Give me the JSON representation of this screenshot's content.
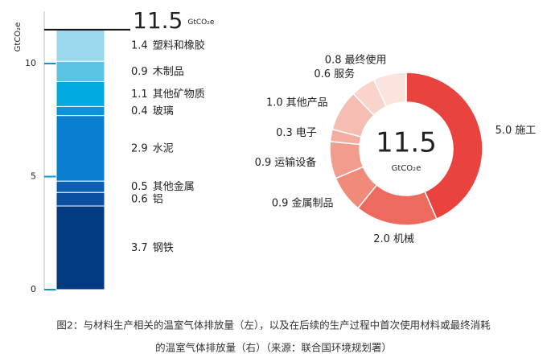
{
  "chart_data": [
    {
      "type": "stacked_bar",
      "y_label": "GtCO₂e",
      "ylim": [
        0,
        12.3
      ],
      "yticks": [
        0,
        5,
        10
      ],
      "total": 11.5,
      "total_unit": "GtCO₂e",
      "series": [
        {
          "name": "钢铁",
          "color": "#003a80",
          "values": [
            3.7
          ]
        },
        {
          "name": "铝",
          "color": "#0a4fa0",
          "values": [
            0.6
          ]
        },
        {
          "name": "其他金属",
          "color": "#0d5fb5",
          "values": [
            0.5
          ]
        },
        {
          "name": "水泥",
          "color": "#0a7fd0",
          "values": [
            2.9
          ]
        },
        {
          "name": "玻璃",
          "color": "#0a93d8",
          "values": [
            0.4
          ]
        },
        {
          "name": "其他矿物质",
          "color": "#00a9df",
          "values": [
            1.1
          ]
        },
        {
          "name": "木制品",
          "color": "#5bc4e6",
          "values": [
            0.9
          ]
        },
        {
          "name": "塑料和橡胶",
          "color": "#9ad6ec",
          "values": [
            1.4
          ]
        }
      ]
    },
    {
      "type": "donut",
      "total": 11.5,
      "total_unit": "GtCO₂e",
      "categories": [
        "施工",
        "机械",
        "金属制品",
        "运输设备",
        "电子",
        "其他产品",
        "服务",
        "最终使用"
      ],
      "values": [
        5.0,
        2.0,
        0.9,
        0.9,
        0.3,
        1.0,
        0.6,
        0.8
      ],
      "value_labels": [
        "5.0",
        "2.0",
        "0.9",
        "0.9",
        "0.3",
        "1.0",
        "0.6",
        "0.8"
      ],
      "colors": [
        "#e8433f",
        "#ed6b5e",
        "#f08a7b",
        "#f29c8e",
        "#f4ada1",
        "#f6bdb3",
        "#f9d3cc",
        "#fbe3de"
      ]
    }
  ],
  "caption": [
    "图2：与材料生产相关的温室气体排放量（左），以及在后续的生产过程中首次使用材料或最终消耗",
    "的温室气体排放量（右）（来源：联合国环境规划署）"
  ]
}
